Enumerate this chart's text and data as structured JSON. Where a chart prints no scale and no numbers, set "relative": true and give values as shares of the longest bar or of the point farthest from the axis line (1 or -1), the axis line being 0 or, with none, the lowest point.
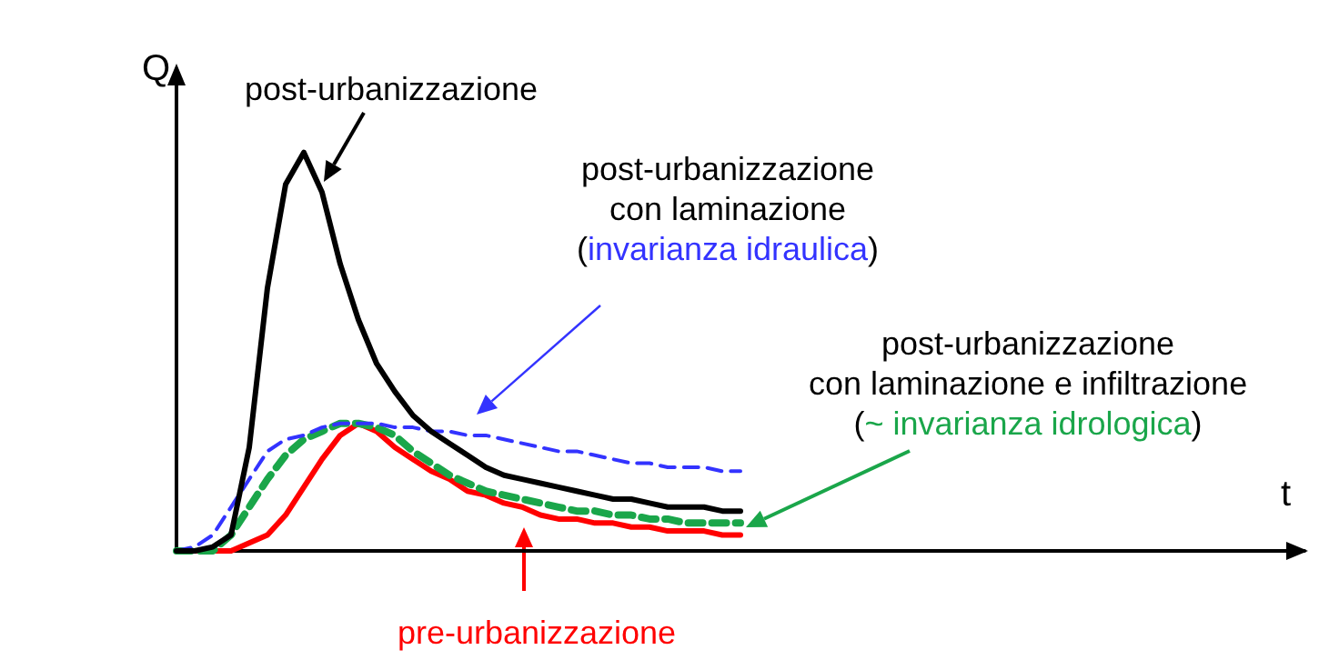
{
  "chart_data": {
    "type": "line",
    "relative": true,
    "xlabel": "t",
    "ylabel": "Q",
    "marker": "none",
    "grid": false,
    "categories": [
      null,
      null,
      null,
      null,
      null,
      null,
      null,
      null,
      null,
      null,
      null,
      null,
      null,
      null,
      null,
      null,
      null,
      null,
      null,
      null,
      null,
      null,
      null,
      null,
      null,
      null,
      null,
      null,
      null,
      null,
      null,
      null,
      null,
      null,
      null,
      null,
      null,
      null,
      null,
      null,
      null,
      null,
      null,
      null,
      null,
      null,
      null,
      null,
      null,
      null,
      null,
      null,
      null,
      null,
      null,
      null,
      null,
      null,
      null,
      null,
      null,
      null,
      null
    ],
    "series": [
      {
        "color": "#000000",
        "line_style": "solid",
        "values": [
          0,
          0,
          0.01,
          0.04,
          0.26,
          0.66,
          0.92,
          1,
          0.9,
          0.72,
          0.58,
          0.47,
          0.4,
          0.34,
          0.3,
          0.27,
          0.24,
          0.21,
          0.19,
          0.18,
          0.17,
          0.16,
          0.15,
          0.14,
          0.13,
          0.13,
          0.12,
          0.11,
          0.11,
          0.11,
          0.1,
          0.1,
          null,
          null,
          null,
          null,
          null,
          null,
          null,
          null,
          null,
          null,
          null,
          null,
          null,
          null,
          null,
          null,
          null,
          null,
          null,
          null,
          null,
          null,
          null,
          null,
          null,
          null,
          null,
          null,
          null,
          null,
          null
        ]
      },
      {
        "color": "#3333ff",
        "line_style": "dashed",
        "values": [
          0,
          0.01,
          0.04,
          0.11,
          0.18,
          0.25,
          0.28,
          0.29,
          0.31,
          0.32,
          0.32,
          0.32,
          0.31,
          0.31,
          0.3,
          0.3,
          0.29,
          0.29,
          0.28,
          0.27,
          0.26,
          0.25,
          0.25,
          0.24,
          0.23,
          0.22,
          0.22,
          0.21,
          0.21,
          0.21,
          0.2,
          0.2,
          null,
          null,
          null,
          null,
          null,
          null,
          null,
          null,
          null,
          null,
          null,
          null,
          null,
          null,
          null,
          null,
          null,
          null,
          null,
          null,
          null,
          null,
          null,
          null,
          null,
          null,
          null,
          null,
          null,
          null,
          null
        ]
      },
      {
        "color": "#1aa64a",
        "line_style": "dashed",
        "values": [
          0,
          0,
          0,
          0.04,
          0.11,
          0.18,
          0.24,
          0.28,
          0.3,
          0.32,
          0.32,
          0.31,
          0.29,
          0.25,
          0.22,
          0.19,
          0.17,
          0.15,
          0.14,
          0.13,
          0.12,
          0.11,
          0.1,
          0.1,
          0.09,
          0.09,
          0.08,
          0.08,
          0.07,
          0.07,
          0.07,
          0.07,
          null,
          null,
          null,
          null,
          null,
          null,
          null,
          null,
          null,
          null,
          null,
          null,
          null,
          null,
          null,
          null,
          null,
          null,
          null,
          null,
          null,
          null,
          null,
          null,
          null,
          null,
          null,
          null,
          null,
          null,
          null
        ]
      },
      {
        "color": "#ff0000",
        "line_style": "solid",
        "values": [
          0,
          0,
          0,
          0,
          0.02,
          0.04,
          0.09,
          0.16,
          0.23,
          0.29,
          0.32,
          0.3,
          0.26,
          0.23,
          0.2,
          0.18,
          0.15,
          0.14,
          0.12,
          0.11,
          0.09,
          0.08,
          0.08,
          0.07,
          0.07,
          0.06,
          0.06,
          0.05,
          0.05,
          0.05,
          0.04,
          0.04,
          null,
          null,
          null,
          null,
          null,
          null,
          null,
          null,
          null,
          null,
          null,
          null,
          null,
          null,
          null,
          null,
          null,
          null,
          null,
          null,
          null,
          null,
          null,
          null,
          null,
          null,
          null,
          null,
          null,
          null,
          null
        ]
      }
    ],
    "annotations": [
      "post-urbanizzazione",
      "post-urbanizzazione\ncon laminazione\n(invarianza idraulica)",
      "post-urbanizzazione\ncon laminazione e infiltrazione\n(~ invarianza idrologica)",
      "pre-urbanizzazione"
    ]
  }
}
